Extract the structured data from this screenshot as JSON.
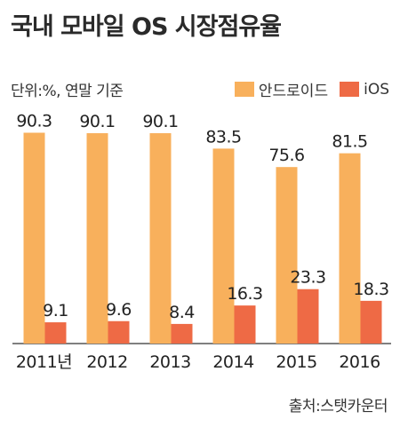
{
  "header": {
    "title": "국내 모바일 OS 시장점유율"
  },
  "meta": {
    "unit_note": "단위:%, 연말 기준",
    "source": "출처:스탯카운터"
  },
  "colors": {
    "android": "#F8B05C",
    "ios": "#EE6A45",
    "axis": "#555555",
    "text": "#222222"
  },
  "chart_data": {
    "type": "bar",
    "title": "국내 모바일 OS 시장점유율",
    "categories": [
      "2011년",
      "2012",
      "2013",
      "2014",
      "2015",
      "2016"
    ],
    "series": [
      {
        "name": "안드로이드",
        "values": [
          90.3,
          90.1,
          90.1,
          83.5,
          75.6,
          81.5
        ],
        "labels": [
          "90.3",
          "90.1",
          "90.1",
          "83.5",
          "75.6",
          "81.5"
        ]
      },
      {
        "name": "iOS",
        "values": [
          9.1,
          9.6,
          8.4,
          16.3,
          23.3,
          18.3
        ],
        "labels": [
          "9.1",
          "9.6",
          "8.4",
          "16.3",
          "23.3",
          "18.3"
        ]
      }
    ],
    "ylim": [
      0,
      100
    ],
    "grid": false,
    "legend": "top-right"
  }
}
